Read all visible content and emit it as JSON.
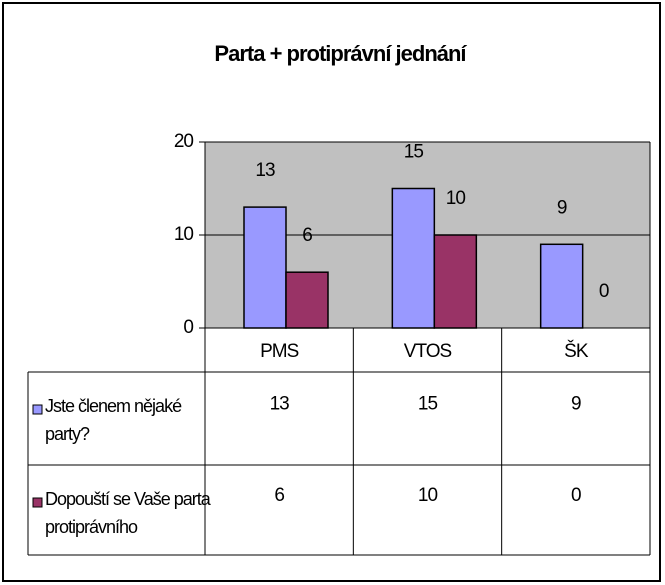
{
  "chart_data": {
    "type": "bar",
    "title": "Parta + protiprávní jednání",
    "categories": [
      "PMS",
      "VTOS",
      "ŠK"
    ],
    "series": [
      {
        "name": "Jste členem nějaké party?",
        "color": "#9999ff",
        "values": [
          13,
          15,
          9
        ]
      },
      {
        "name": "Dopouští se Vaše parta protiprávního",
        "color": "#993366",
        "values": [
          6,
          10,
          0
        ]
      }
    ],
    "ylim": [
      0,
      20
    ],
    "yticks": [
      0,
      10,
      20
    ],
    "grid": true,
    "data_table": true
  }
}
